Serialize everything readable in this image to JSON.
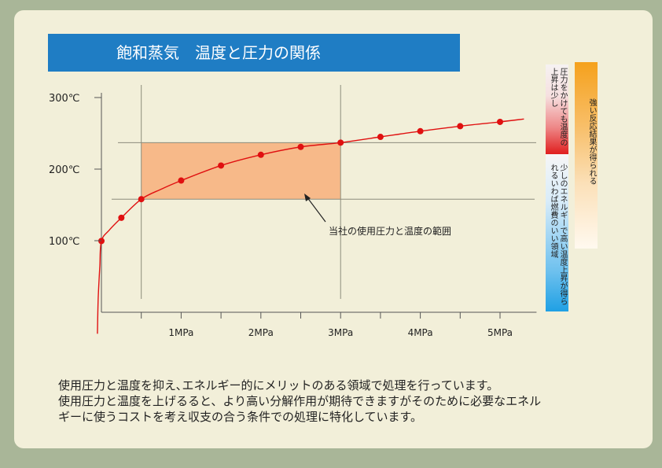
{
  "title": "飽和蒸気　温度と圧力の関係",
  "chart_data": {
    "type": "line",
    "x_unit": "MPa",
    "y_unit": "℃",
    "xlim": [
      0,
      5.3
    ],
    "ylim": [
      0,
      300
    ],
    "x_ticks": [
      {
        "value": 1,
        "label": "1MPa"
      },
      {
        "value": 2,
        "label": "2MPa"
      },
      {
        "value": 3,
        "label": "3MPa"
      },
      {
        "value": 4,
        "label": "4MPa"
      },
      {
        "value": 5,
        "label": "5MPa"
      }
    ],
    "y_ticks": [
      {
        "value": 100,
        "label": "100℃"
      },
      {
        "value": 200,
        "label": "200℃"
      },
      {
        "value": 300,
        "label": "300℃"
      }
    ],
    "points": [
      {
        "x": 0.0,
        "y": 99.6
      },
      {
        "x": 0.25,
        "y": 132
      },
      {
        "x": 0.5,
        "y": 158
      },
      {
        "x": 1.0,
        "y": 184
      },
      {
        "x": 1.5,
        "y": 205
      },
      {
        "x": 2.0,
        "y": 220
      },
      {
        "x": 2.5,
        "y": 231
      },
      {
        "x": 3.0,
        "y": 237
      },
      {
        "x": 3.5,
        "y": 245
      },
      {
        "x": 4.0,
        "y": 253
      },
      {
        "x": 4.5,
        "y": 260
      },
      {
        "x": 5.0,
        "y": 266
      }
    ],
    "curve": [
      {
        "x": -0.05,
        "y": -30
      },
      {
        "x": -0.04,
        "y": 20
      },
      {
        "x": -0.02,
        "y": 65
      },
      {
        "x": 0.0,
        "y": 99.6
      },
      {
        "x": 0.1,
        "y": 115
      },
      {
        "x": 0.25,
        "y": 132
      },
      {
        "x": 0.5,
        "y": 158
      },
      {
        "x": 0.75,
        "y": 172
      },
      {
        "x": 1.0,
        "y": 184
      },
      {
        "x": 1.5,
        "y": 205
      },
      {
        "x": 2.0,
        "y": 220
      },
      {
        "x": 2.5,
        "y": 231
      },
      {
        "x": 3.0,
        "y": 237
      },
      {
        "x": 3.5,
        "y": 245
      },
      {
        "x": 4.0,
        "y": 253
      },
      {
        "x": 4.5,
        "y": 260
      },
      {
        "x": 5.0,
        "y": 266
      },
      {
        "x": 5.3,
        "y": 270
      }
    ],
    "operating_range": {
      "x_min": 0.5,
      "x_max": 3.0,
      "y_min": 158,
      "y_max": 237
    },
    "reference_lines": {
      "x": [
        0.5,
        3.0
      ],
      "y": [
        158,
        237
      ]
    },
    "annotation": "当社の使用圧力と温度の範囲",
    "colors": {
      "curve": "#e01010",
      "marker": "#e01010",
      "range_fill": "#f7b989",
      "grid": "#8c8c7c"
    }
  },
  "side_bars": {
    "hot_text": "圧力をかけても温度の上昇は少し",
    "cool_text": "少しのエネルギーで高い温度上昇が得られるいわば燃費のいい領域",
    "strong_text": "強い反応結果が得られる"
  },
  "description": [
    "使用圧力と温度を抑え､エネルギー的にメリットのある領域で処理を行っています。",
    "使用圧力と温度を上げるると、より高い分解作用が期待できますがそのために必要なエネル",
    "ギーに使うコストを考え収支の合う条件での処理に特化しています。"
  ]
}
